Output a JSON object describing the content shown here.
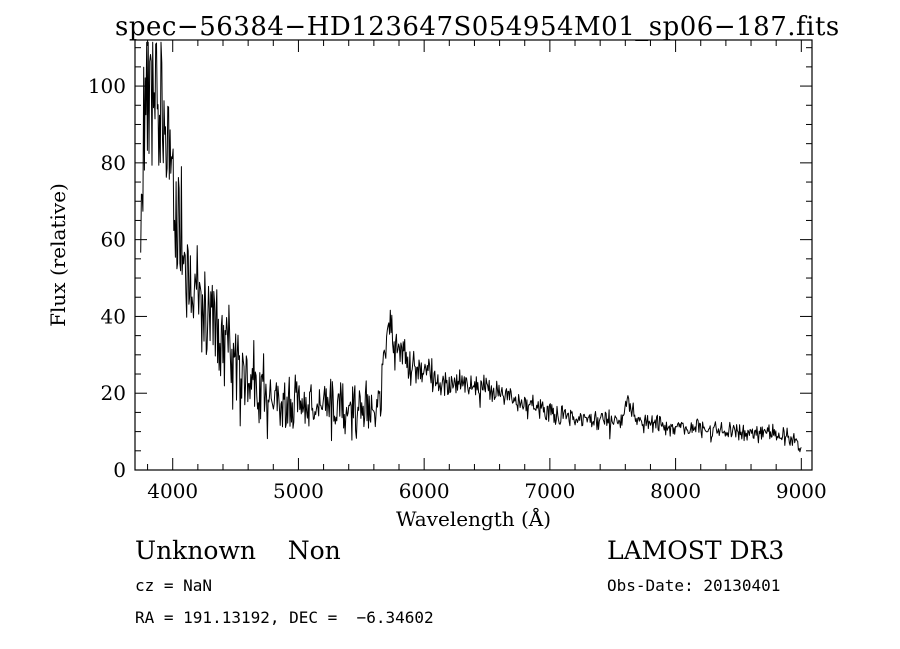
{
  "page": {
    "background": "#ffffff",
    "foreground": "#000000"
  },
  "annotations": {
    "class_label": "Unknown    Non",
    "survey": "LAMOST DR3",
    "cz": "cz = NaN",
    "obs_date": "Obs-Date: 20130401",
    "ra_dec": "RA = 191.13192, DEC =  −6.34602"
  },
  "chart_data": {
    "type": "line",
    "title": "spec−56384−HD123647S054954M01_sp06−187.fits",
    "xlabel": "Wavelength (Å)",
    "ylabel": "Flux (relative)",
    "xlim": [
      3700,
      9085
    ],
    "ylim": [
      0,
      112
    ],
    "x_major_ticks": [
      4000,
      5000,
      6000,
      7000,
      8000,
      9000
    ],
    "x_minor_step": 200,
    "y_major_ticks": [
      0,
      20,
      40,
      60,
      80,
      100
    ],
    "y_minor_step": 5,
    "grid": false,
    "legend": false,
    "line_color": "#000000",
    "axis_color": "#000000",
    "series": [
      {
        "name": "spectrum",
        "sample_step": 6,
        "x_start": 3745,
        "x_end": 9000,
        "seed": 20130401,
        "continuum_anchors": [
          [
            3745,
            62
          ],
          [
            3770,
            85
          ],
          [
            3800,
            103
          ],
          [
            3830,
            106
          ],
          [
            3860,
            100
          ],
          [
            3900,
            95
          ],
          [
            3950,
            87
          ],
          [
            4000,
            74
          ],
          [
            4050,
            64
          ],
          [
            4100,
            58
          ],
          [
            4150,
            51
          ],
          [
            4200,
            46
          ],
          [
            4250,
            41
          ],
          [
            4300,
            38
          ],
          [
            4350,
            34
          ],
          [
            4400,
            31
          ],
          [
            4450,
            29
          ],
          [
            4500,
            27
          ],
          [
            4600,
            23.5
          ],
          [
            4700,
            21
          ],
          [
            4800,
            19
          ],
          [
            4900,
            18
          ],
          [
            5000,
            17
          ],
          [
            5100,
            16.5
          ],
          [
            5200,
            16
          ],
          [
            5300,
            16
          ],
          [
            5400,
            16.5
          ],
          [
            5500,
            16
          ],
          [
            5600,
            16.5
          ],
          [
            5650,
            18
          ],
          [
            5680,
            27
          ],
          [
            5705,
            34
          ],
          [
            5725,
            37
          ],
          [
            5760,
            33.5
          ],
          [
            5800,
            31
          ],
          [
            5850,
            29
          ],
          [
            5900,
            27.5
          ],
          [
            6000,
            25.5
          ],
          [
            6100,
            24
          ],
          [
            6200,
            23
          ],
          [
            6300,
            22.5
          ],
          [
            6400,
            22
          ],
          [
            6500,
            21
          ],
          [
            6600,
            19.5
          ],
          [
            6700,
            18.5
          ],
          [
            6800,
            17.5
          ],
          [
            6900,
            16.5
          ],
          [
            7000,
            15.5
          ],
          [
            7100,
            14.5
          ],
          [
            7200,
            14
          ],
          [
            7300,
            13.5
          ],
          [
            7400,
            13
          ],
          [
            7500,
            12.8
          ],
          [
            7560,
            13.2
          ],
          [
            7620,
            17
          ],
          [
            7670,
            14
          ],
          [
            7700,
            12.6
          ],
          [
            7800,
            12
          ],
          [
            7900,
            11.5
          ],
          [
            8000,
            11
          ],
          [
            8100,
            10.8
          ],
          [
            8200,
            10.5
          ],
          [
            8300,
            10.2
          ],
          [
            8400,
            10
          ],
          [
            8500,
            9.8
          ],
          [
            8600,
            9.5
          ],
          [
            8700,
            9.2
          ],
          [
            8800,
            9
          ],
          [
            8900,
            8.7
          ],
          [
            8950,
            8.4
          ],
          [
            9000,
            5.5
          ]
        ],
        "noise_sigma_anchors": [
          [
            3745,
            10
          ],
          [
            3800,
            11
          ],
          [
            3900,
            12
          ],
          [
            4000,
            10
          ],
          [
            4100,
            9
          ],
          [
            4200,
            8
          ],
          [
            4300,
            7
          ],
          [
            4400,
            6.5
          ],
          [
            4500,
            5.5
          ],
          [
            4700,
            5
          ],
          [
            4900,
            4.5
          ],
          [
            5100,
            4.2
          ],
          [
            5300,
            4
          ],
          [
            5500,
            3.6
          ],
          [
            5650,
            3.2
          ],
          [
            5725,
            3
          ],
          [
            5800,
            2.6
          ],
          [
            6000,
            2.2
          ],
          [
            6300,
            2
          ],
          [
            6600,
            1.8
          ],
          [
            7000,
            1.6
          ],
          [
            7400,
            1.4
          ],
          [
            7620,
            1.5
          ],
          [
            8000,
            1.3
          ],
          [
            8500,
            1.2
          ],
          [
            9000,
            1.1
          ]
        ]
      }
    ]
  }
}
